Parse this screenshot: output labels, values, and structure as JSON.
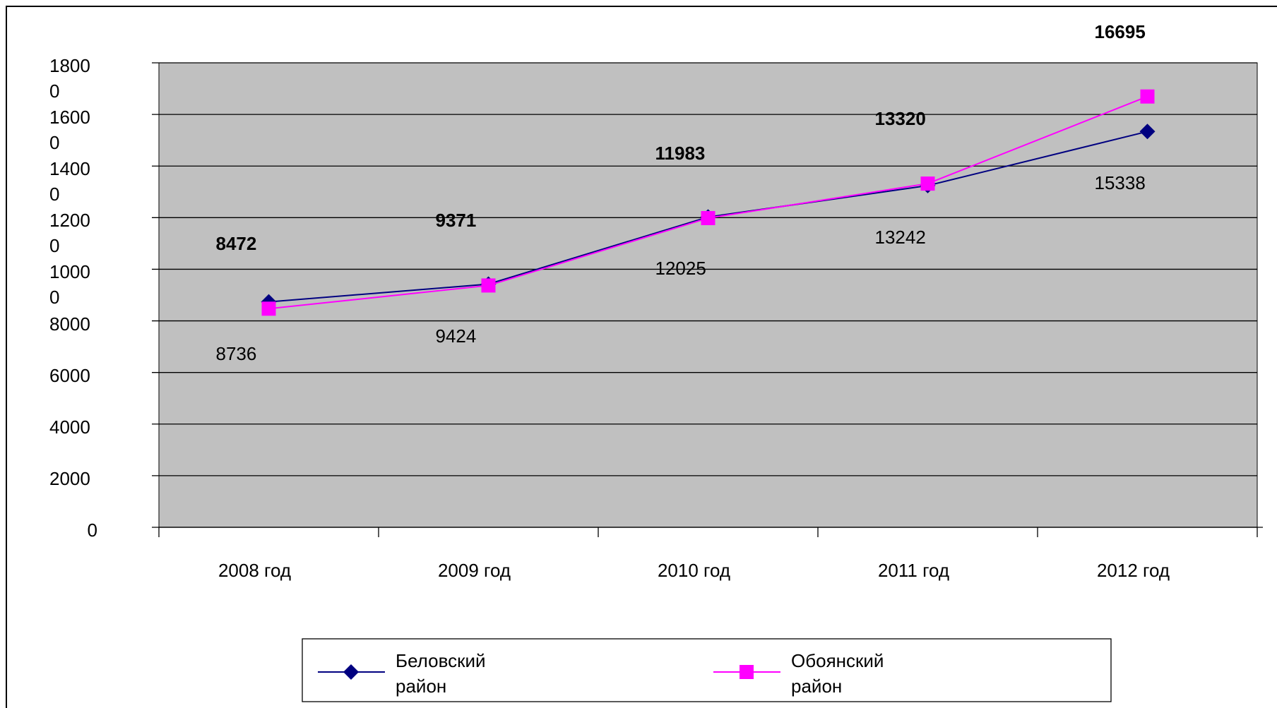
{
  "chart_data": {
    "type": "line",
    "categories": [
      "2008 год",
      "2009 год",
      "2010 год",
      "2011 год",
      "2012 год"
    ],
    "series": [
      {
        "name": "Беловский район",
        "color": "#000080",
        "marker": "diamond",
        "values": [
          8736,
          9424,
          12025,
          13242,
          15338
        ]
      },
      {
        "name": "Обоянский район",
        "color": "#ff00ff",
        "marker": "square",
        "values": [
          8472,
          9371,
          11983,
          13320,
          16695
        ]
      }
    ],
    "ylim": [
      0,
      18000
    ],
    "yticks": [
      0,
      2000,
      4000,
      6000,
      8000,
      10000,
      12000,
      14000,
      16000,
      18000
    ],
    "grid": true,
    "plot_background": "#c0c0c0",
    "legend": "bottom"
  }
}
